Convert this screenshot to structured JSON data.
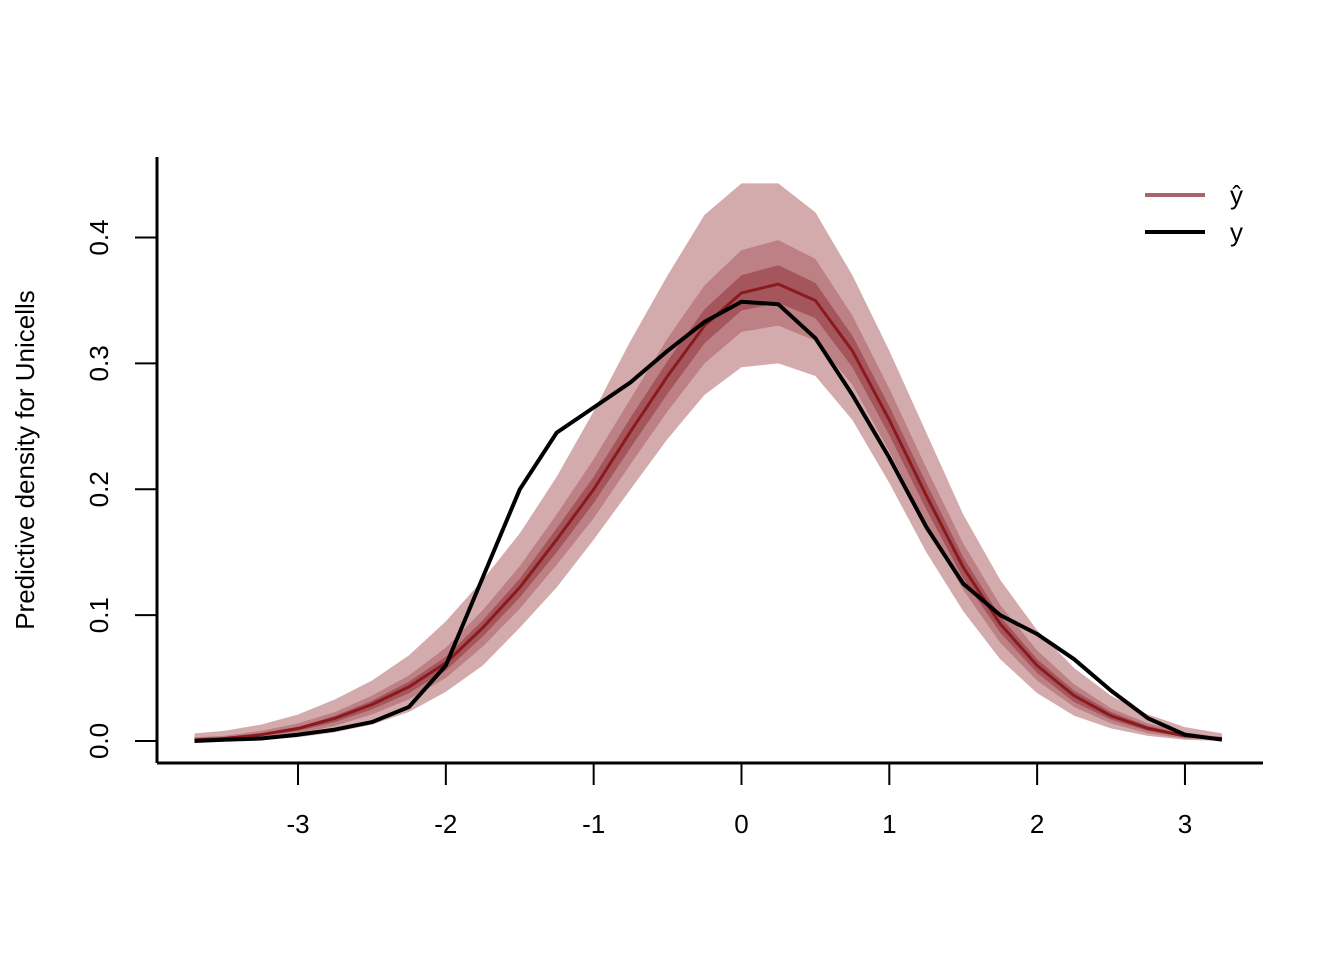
{
  "chart_data": {
    "type": "line",
    "ylabel": "Predictive density for Unicells",
    "legend": "topright",
    "xlim": [
      -3.954,
      3.528
    ],
    "ylim": [
      -0.0175,
      0.464
    ],
    "xticks": [
      -3,
      -2,
      -1,
      0,
      1,
      2,
      3
    ],
    "yticks": [
      {
        "value": 0,
        "label": "0.0"
      },
      0.1,
      0.2,
      0.3,
      0.4
    ],
    "x": [
      -3.7,
      -3.5,
      -3.25,
      -3,
      -2.75,
      -2.5,
      -2.25,
      -2,
      -1.75,
      -1.5,
      -1.25,
      -1,
      -0.75,
      -0.5,
      -0.25,
      0,
      0.25,
      0.5,
      0.75,
      1,
      1.25,
      1.5,
      1.75,
      2,
      2.25,
      2.5,
      2.75,
      3,
      3.25
    ],
    "series": [
      {
        "name": "ŷ",
        "color": "#8b1a1f",
        "legend_color": "#a8666b",
        "values": [
          0.001,
          0.002,
          0.005,
          0.01,
          0.018,
          0.029,
          0.043,
          0.062,
          0.09,
          0.122,
          0.16,
          0.2,
          0.246,
          0.29,
          0.33,
          0.356,
          0.363,
          0.35,
          0.31,
          0.255,
          0.195,
          0.138,
          0.093,
          0.06,
          0.036,
          0.02,
          0.01,
          0.004,
          0.002
        ],
        "bands": [
          {
            "color": "#d4abad",
            "lower": [
              0,
              0,
              0.001,
              0.003,
              0.007,
              0.013,
              0.023,
              0.039,
              0.06,
              0.09,
              0.122,
              0.16,
              0.2,
              0.24,
              0.275,
              0.297,
              0.3,
              0.29,
              0.255,
              0.205,
              0.15,
              0.103,
              0.065,
              0.038,
              0.02,
              0.01,
              0.004,
              0.001,
              0
            ],
            "upper": [
              0.006,
              0.008,
              0.013,
              0.021,
              0.033,
              0.048,
              0.068,
              0.095,
              0.128,
              0.165,
              0.21,
              0.262,
              0.318,
              0.37,
              0.418,
              0.443,
              0.443,
              0.42,
              0.37,
              0.31,
              0.245,
              0.18,
              0.128,
              0.088,
              0.058,
              0.036,
              0.021,
              0.011,
              0.006
            ]
          },
          {
            "color": "#bd8084",
            "lower": [
              0,
              0.001,
              0.003,
              0.006,
              0.012,
              0.021,
              0.033,
              0.05,
              0.075,
              0.105,
              0.14,
              0.177,
              0.22,
              0.262,
              0.3,
              0.325,
              0.33,
              0.318,
              0.283,
              0.23,
              0.172,
              0.12,
              0.078,
              0.048,
              0.027,
              0.014,
              0.006,
              0.002,
              0.001
            ],
            "upper": [
              0.003,
              0.004,
              0.008,
              0.014,
              0.023,
              0.036,
              0.052,
              0.074,
              0.104,
              0.139,
              0.18,
              0.224,
              0.272,
              0.32,
              0.362,
              0.39,
              0.398,
              0.383,
              0.338,
              0.28,
              0.217,
              0.157,
              0.108,
              0.072,
              0.045,
              0.026,
              0.014,
              0.007,
              0.003
            ]
          },
          {
            "color": "#a4565c",
            "lower": [
              0.001,
              0.001,
              0.004,
              0.008,
              0.015,
              0.025,
              0.038,
              0.056,
              0.083,
              0.114,
              0.15,
              0.189,
              0.233,
              0.276,
              0.316,
              0.342,
              0.348,
              0.336,
              0.297,
              0.243,
              0.184,
              0.129,
              0.086,
              0.054,
              0.031,
              0.017,
              0.008,
              0.003,
              0.001
            ],
            "upper": [
              0.002,
              0.003,
              0.006,
              0.011,
              0.02,
              0.032,
              0.047,
              0.067,
              0.096,
              0.129,
              0.169,
              0.21,
              0.257,
              0.302,
              0.343,
              0.37,
              0.378,
              0.364,
              0.322,
              0.266,
              0.205,
              0.146,
              0.099,
              0.065,
              0.04,
              0.023,
              0.012,
              0.005,
              0.002
            ]
          }
        ]
      },
      {
        "name": "y",
        "color": "#000000",
        "values": [
          0,
          0.001,
          0.002,
          0.005,
          0.009,
          0.015,
          0.027,
          0.06,
          0.13,
          0.2,
          0.245,
          0.265,
          0.285,
          0.31,
          0.333,
          0.349,
          0.347,
          0.32,
          0.275,
          0.225,
          0.17,
          0.125,
          0.1,
          0.085,
          0.065,
          0.04,
          0.018,
          0.005,
          0.001
        ]
      }
    ]
  }
}
